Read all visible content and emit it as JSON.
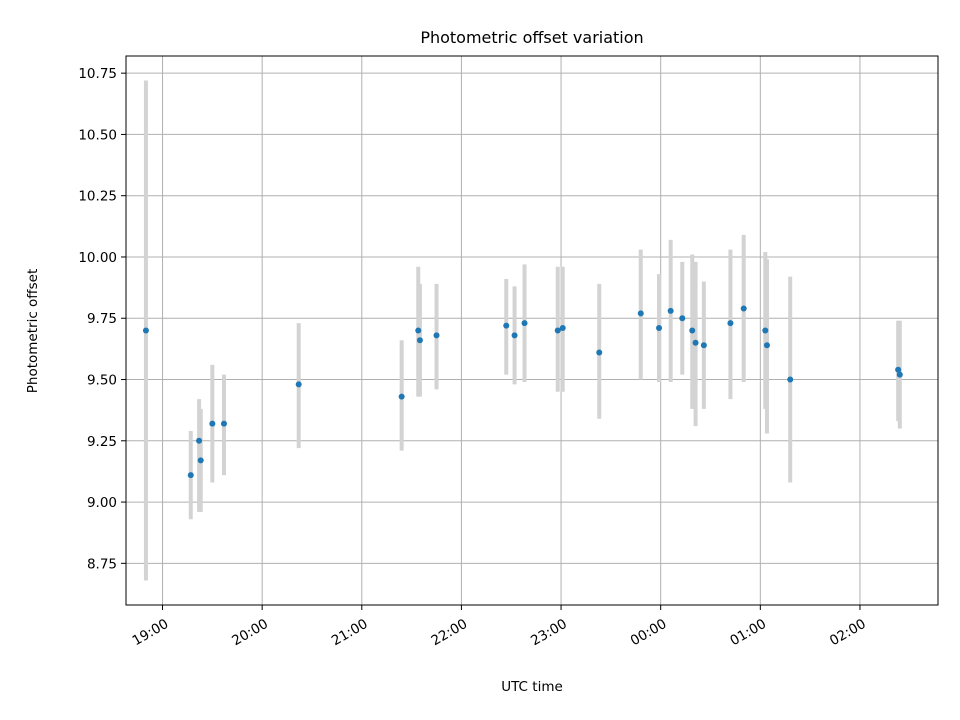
{
  "chart_data": {
    "type": "scatter",
    "title": "Photometric offset variation",
    "xlabel": "UTC time",
    "ylabel": "Photometric offset",
    "x_ticks": [
      "19:00",
      "20:00",
      "21:00",
      "22:00",
      "23:00",
      "00:00",
      "01:00",
      "02:00"
    ],
    "y_ticks": [
      "8.75",
      "9.00",
      "9.25",
      "9.50",
      "9.75",
      "10.00",
      "10.25",
      "10.50",
      "10.75"
    ],
    "xlim": [
      "18:38",
      "02:47"
    ],
    "ylim": [
      8.58,
      10.82
    ],
    "grid": true,
    "marker_color": "#1f77b4",
    "errorbar_color": "#d3d3d3",
    "points": [
      {
        "x": "18:50",
        "y": 9.7,
        "low": 8.68,
        "high": 10.72
      },
      {
        "x": "19:17",
        "y": 9.11,
        "low": 8.93,
        "high": 9.29
      },
      {
        "x": "19:22",
        "y": 9.25,
        "low": 8.96,
        "high": 9.42
      },
      {
        "x": "19:23",
        "y": 9.17,
        "low": 8.96,
        "high": 9.38
      },
      {
        "x": "19:30",
        "y": 9.32,
        "low": 9.08,
        "high": 9.56
      },
      {
        "x": "19:37",
        "y": 9.32,
        "low": 9.11,
        "high": 9.52
      },
      {
        "x": "20:22",
        "y": 9.48,
        "low": 9.22,
        "high": 9.73
      },
      {
        "x": "21:24",
        "y": 9.43,
        "low": 9.21,
        "high": 9.66
      },
      {
        "x": "21:34",
        "y": 9.7,
        "low": 9.43,
        "high": 9.96
      },
      {
        "x": "21:35",
        "y": 9.66,
        "low": 9.43,
        "high": 9.89
      },
      {
        "x": "21:45",
        "y": 9.68,
        "low": 9.46,
        "high": 9.89
      },
      {
        "x": "22:27",
        "y": 9.72,
        "low": 9.52,
        "high": 9.91
      },
      {
        "x": "22:32",
        "y": 9.68,
        "low": 9.48,
        "high": 9.88
      },
      {
        "x": "22:38",
        "y": 9.73,
        "low": 9.49,
        "high": 9.97
      },
      {
        "x": "22:58",
        "y": 9.7,
        "low": 9.45,
        "high": 9.96
      },
      {
        "x": "23:01",
        "y": 9.71,
        "low": 9.45,
        "high": 9.96
      },
      {
        "x": "23:23",
        "y": 9.61,
        "low": 9.34,
        "high": 9.89
      },
      {
        "x": "23:48",
        "y": 9.77,
        "low": 9.5,
        "high": 10.03
      },
      {
        "x": "23:59",
        "y": 9.71,
        "low": 9.49,
        "high": 9.93
      },
      {
        "x": "00:06",
        "y": 9.78,
        "low": 9.49,
        "high": 10.07
      },
      {
        "x": "00:13",
        "y": 9.75,
        "low": 9.52,
        "high": 9.98
      },
      {
        "x": "00:19",
        "y": 9.7,
        "low": 9.38,
        "high": 10.01
      },
      {
        "x": "00:21",
        "y": 9.65,
        "low": 9.31,
        "high": 9.98
      },
      {
        "x": "00:26",
        "y": 9.64,
        "low": 9.38,
        "high": 9.9
      },
      {
        "x": "00:42",
        "y": 9.73,
        "low": 9.42,
        "high": 10.03
      },
      {
        "x": "00:50",
        "y": 9.79,
        "low": 9.49,
        "high": 10.09
      },
      {
        "x": "01:03",
        "y": 9.7,
        "low": 9.38,
        "high": 10.02
      },
      {
        "x": "01:04",
        "y": 9.64,
        "low": 9.28,
        "high": 9.99
      },
      {
        "x": "01:18",
        "y": 9.5,
        "low": 9.08,
        "high": 9.92
      },
      {
        "x": "02:23",
        "y": 9.54,
        "low": 9.33,
        "high": 9.74
      },
      {
        "x": "02:24",
        "y": 9.52,
        "low": 9.3,
        "high": 9.74
      }
    ]
  }
}
